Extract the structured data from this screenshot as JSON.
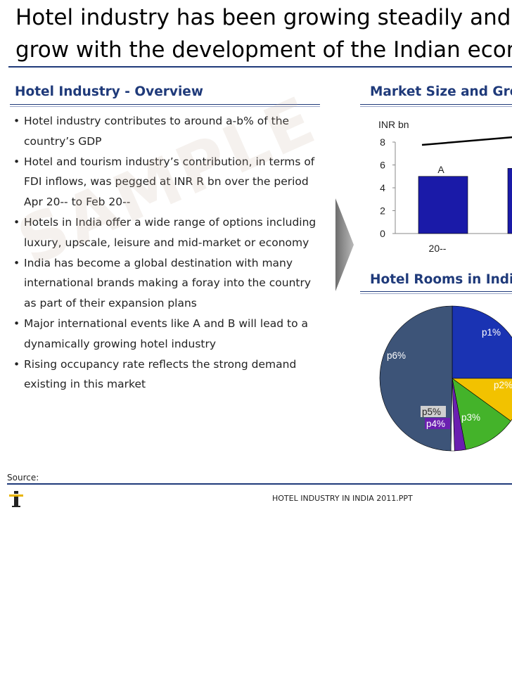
{
  "slide": {
    "title_line1": "Hotel industry has been growing steadily and i",
    "title_line2": "grow with the development of the Indian econ",
    "left_heading": "Hotel Industry - Overview",
    "bullets": [
      "Hotel industry contributes to around a-b% of the country’s GDP",
      "Hotel and tourism industry’s contribution, in terms of FDI inflows, was pegged at INR R bn over the period Apr 20-- to Feb 20--",
      "Hotels in India offer a wide range of options including luxury, upscale, leisure and mid-market or economy",
      "India has become a global destination with many international brands making a foray into the country as part of their expansion plans",
      "Major international events like A and B will lead to a dynamically growing hotel industry",
      "Rising occupancy rate reflects the strong  demand existing in this market"
    ],
    "watermark": "SAMPLE",
    "right_heading_1": "Market Size and Gro",
    "right_heading_2": "Hotel Rooms in India",
    "source_label": "Source:",
    "footer": "HOTEL INDUSTRY IN INDIA 2011.PPT"
  },
  "colors": {
    "heading": "#1f3a7a",
    "bar": "#1a1aa8",
    "pie": [
      "#1a33b3",
      "#f2c200",
      "#44b32a",
      "#6a1fb0",
      "#3d5478"
    ]
  },
  "chart_data": [
    {
      "type": "bar",
      "title": "Market Size and Gro",
      "unit_label": "INR bn",
      "categories": [
        "20--",
        ""
      ],
      "values": [
        5.0,
        5.7
      ],
      "data_labels": [
        "A",
        ""
      ],
      "ylim": [
        0,
        8
      ],
      "yticks": [
        0,
        2,
        4,
        6,
        8
      ],
      "trend_line": true,
      "grid": false
    },
    {
      "type": "pie",
      "title": "Hotel Rooms in India",
      "labels": [
        "p1%",
        "p2%",
        "p3%",
        "p4%",
        "p5%",
        "p6%"
      ],
      "values": [
        25,
        10,
        12,
        2.5,
        0.8,
        49.7
      ],
      "visible_fraction_note": ""
    }
  ]
}
